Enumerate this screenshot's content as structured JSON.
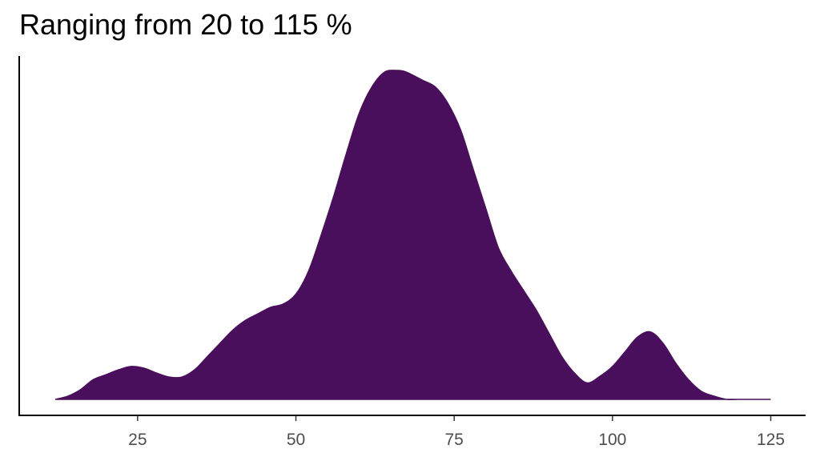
{
  "chart_data": {
    "type": "area",
    "title": "Ranging from 20 to 115 %",
    "xlabel": "",
    "ylabel": "",
    "xlim": [
      6.3,
      130.5
    ],
    "ylim": [
      0,
      1
    ],
    "x_ticks": [
      25,
      50,
      75,
      100,
      125
    ],
    "x_tick_labels": [
      "25",
      "50",
      "75",
      "100",
      "125"
    ],
    "y_ticks": [],
    "grid": false,
    "legend": "none",
    "fill_color": "#4a0f5c",
    "axis_color": "#000000",
    "series": [
      {
        "x": [
          12,
          14,
          16,
          18,
          20,
          22,
          24,
          26,
          28,
          30,
          32,
          34,
          36,
          38,
          40,
          42,
          44,
          46,
          48,
          50,
          52,
          54,
          56,
          58,
          60,
          62,
          64,
          66,
          67,
          68,
          70,
          72,
          74,
          76,
          78,
          80,
          82,
          84,
          86,
          88,
          90,
          92,
          94,
          96,
          98,
          100,
          102,
          104,
          106,
          108,
          110,
          112,
          114,
          116,
          118,
          120,
          122,
          124,
          125
        ],
        "y": [
          0.0,
          0.01,
          0.03,
          0.06,
          0.075,
          0.09,
          0.1,
          0.095,
          0.08,
          0.068,
          0.068,
          0.09,
          0.13,
          0.17,
          0.21,
          0.24,
          0.26,
          0.28,
          0.29,
          0.32,
          0.39,
          0.5,
          0.62,
          0.75,
          0.87,
          0.95,
          0.995,
          1.0,
          0.998,
          0.99,
          0.97,
          0.95,
          0.9,
          0.82,
          0.7,
          0.58,
          0.46,
          0.39,
          0.33,
          0.27,
          0.2,
          0.13,
          0.08,
          0.05,
          0.07,
          0.1,
          0.145,
          0.19,
          0.205,
          0.17,
          0.11,
          0.06,
          0.025,
          0.01,
          0.0,
          0.0,
          0.0,
          0.0,
          0.0
        ]
      }
    ]
  }
}
